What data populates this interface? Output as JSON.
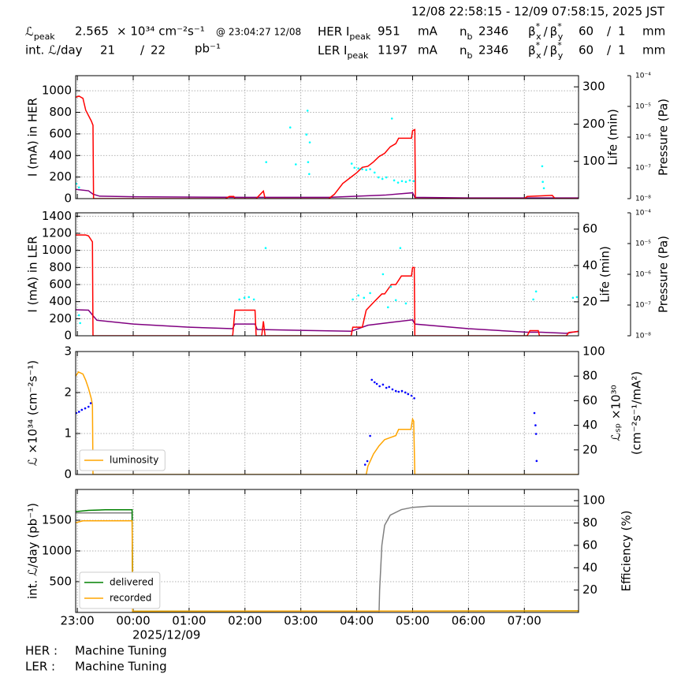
{
  "header": {
    "time_range": "12/08 22:58:15 - 12/09 07:58:15, 2025 JST",
    "peak_lum_symbol": "ℒ",
    "peak_sub": "peak",
    "peak_lum": 2.565,
    "peak_lum_unit": "× 10³⁴ cm⁻²s⁻¹",
    "peak_lum_time": "@ 23:04:27 12/08",
    "int_lum_label": "int. ℒ/day",
    "int_lum_values": [
      21,
      22
    ],
    "separator": "/",
    "int_lum_unit": "pb⁻¹",
    "current_unit": "mA",
    "nb_symbol": "n",
    "nb_sub": "b",
    "beta_symbol": "β",
    "beta_star": "*",
    "beta_x": "x",
    "beta_y": "y",
    "beta_unit": "mm",
    "rings": [
      {
        "label": "HER I",
        "current": 951,
        "bunches": 2346,
        "beta_values": [
          60,
          1
        ]
      },
      {
        "label": "LER I",
        "current": 1197,
        "bunches": 2346,
        "beta_values": [
          60,
          1
        ]
      }
    ]
  },
  "status": [
    {
      "ring": "HER :",
      "state": "Machine Tuning"
    },
    {
      "ring": "LER :",
      "state": "Machine Tuning"
    }
  ],
  "chart_data": [
    {
      "type": "line",
      "ylabel": "I (mA) in HER",
      "y2label": "Life (min)",
      "y3label": "Pressure (Pa)",
      "xlim": [
        -1.03,
        7.97
      ],
      "xticks": [
        -1,
        0,
        1,
        2,
        3,
        4,
        5,
        6,
        7
      ],
      "ylim": [
        0,
        1140
      ],
      "yticks": [
        0,
        200,
        400,
        600,
        800,
        1000
      ],
      "y2lim": [
        0,
        330
      ],
      "y2ticks": [
        100,
        200,
        300
      ],
      "y3lim": [
        1e-08,
        0.0001
      ],
      "y3log": true,
      "y3ticks": [
        {
          "value": 1e-08,
          "label": "10⁻⁸"
        },
        {
          "value": 1e-07,
          "label": "10⁻⁷"
        },
        {
          "value": 1e-06,
          "label": "10⁻⁶"
        },
        {
          "value": 1e-05,
          "label": "10⁻⁵"
        },
        {
          "value": 0.0001,
          "label": "10⁻⁴"
        }
      ],
      "grid": true,
      "series": [
        {
          "color": "#800080",
          "axis": "y3",
          "mode": "line",
          "x": [
            -1.03,
            -0.8,
            -0.72,
            -0.6,
            0,
            2,
            3.5,
            4.5,
            5.0,
            5.04,
            6,
            7.97
          ],
          "values": [
            2e-08,
            1.8e-08,
            1.4e-08,
            1.2e-08,
            1.15e-08,
            1.1e-08,
            1.1e-08,
            1.3e-08,
            1.55e-08,
            1.1e-08,
            1.05e-08,
            1.05e-08
          ]
        },
        {
          "color": "#ff0000",
          "axis": "y",
          "mode": "line",
          "x": [
            -1.03,
            -0.97,
            -0.9,
            -0.85,
            -0.75,
            -0.72,
            -0.71,
            1.65,
            1.72,
            1.8,
            1.82,
            2.2,
            2.33,
            2.36,
            3.5,
            3.6,
            3.75,
            3.9,
            4.0,
            4.1,
            4.2,
            4.3,
            4.4,
            4.5,
            4.6,
            4.7,
            4.75,
            4.85,
            4.98,
            5.0,
            5.04,
            5.05,
            7.0,
            7.05,
            7.5,
            7.55,
            7.97
          ],
          "values": [
            940,
            950,
            930,
            820,
            720,
            680,
            0,
            0,
            20,
            20,
            0,
            0,
            70,
            0,
            0,
            40,
            140,
            200,
            240,
            290,
            300,
            340,
            390,
            420,
            480,
            510,
            560,
            560,
            560,
            630,
            640,
            0,
            0,
            20,
            30,
            0,
            0
          ]
        },
        {
          "color": "#00ffff",
          "axis": "y2",
          "mode": "markers",
          "x": [
            -1.02,
            -0.97,
            2.38,
            2.81,
            2.91,
            3.1,
            3.12,
            3.13,
            3.15,
            3.16,
            3.91,
            3.96,
            4.03,
            4.1,
            4.17,
            4.24,
            4.32,
            4.39,
            4.46,
            4.53,
            4.63,
            4.67,
            4.74,
            4.81,
            4.88,
            4.95,
            5.02,
            7.32,
            7.33,
            7.35
          ],
          "values": [
            40,
            30,
            98,
            191,
            92,
            172,
            236,
            98,
            66,
            151,
            94,
            83,
            81,
            79,
            77,
            79,
            70,
            57,
            53,
            57,
            215,
            49,
            43,
            47,
            45,
            49,
            47,
            87,
            45,
            28
          ]
        }
      ]
    },
    {
      "type": "line",
      "ylabel": "I (mA) in LER",
      "y2label": "Life (min)",
      "y3label": "Pressure (Pa)",
      "xlim": [
        -1.03,
        7.97
      ],
      "xticks": [
        -1,
        0,
        1,
        2,
        3,
        4,
        5,
        6,
        7
      ],
      "ylim": [
        0,
        1440
      ],
      "yticks": [
        0,
        200,
        400,
        600,
        800,
        1000,
        1200,
        1400
      ],
      "y2lim": [
        1.3,
        69
      ],
      "y2ticks": [
        20,
        40,
        60
      ],
      "y3lim": [
        1e-08,
        0.0001
      ],
      "y3log": true,
      "y3ticks": [
        {
          "value": 1e-08,
          "label": "10⁻⁸"
        },
        {
          "value": 1e-07,
          "label": "10⁻⁷"
        },
        {
          "value": 1e-06,
          "label": "10⁻⁶"
        },
        {
          "value": 1e-05,
          "label": "10⁻⁵"
        },
        {
          "value": 0.0001,
          "label": "10⁻⁴"
        }
      ],
      "grid": true,
      "series": [
        {
          "color": "#800080",
          "axis": "y3",
          "mode": "line",
          "x": [
            -1.03,
            -0.8,
            -0.72,
            -0.65,
            0,
            1,
            1.78,
            1.82,
            2.18,
            2.22,
            3.9,
            4.2,
            4.6,
            5.0,
            5.04,
            6,
            7.05,
            7.3,
            7.75,
            7.97
          ],
          "values": [
            7e-08,
            6.8e-08,
            4.5e-08,
            3.2e-08,
            2.4e-08,
            1.9e-08,
            1.7e-08,
            2.4e-08,
            2.4e-08,
            1.6e-08,
            1.4e-08,
            2.2e-08,
            2.7e-08,
            3.3e-08,
            2.4e-08,
            1.7e-08,
            1.3e-08,
            1.3e-08,
            1.2e-08,
            1.4e-08
          ]
        },
        {
          "color": "#ff0000",
          "axis": "y",
          "mode": "line",
          "x": [
            -1.03,
            -0.85,
            -0.8,
            -0.73,
            -0.72,
            1.78,
            1.82,
            2.18,
            2.2,
            2.3,
            2.33,
            2.36,
            3.9,
            3.93,
            4.1,
            4.17,
            4.3,
            4.45,
            4.5,
            4.62,
            4.7,
            4.8,
            4.98,
            5.0,
            5.03,
            5.04,
            7.05,
            7.1,
            7.25,
            7.27,
            7.75,
            7.8,
            7.97
          ],
          "values": [
            1180,
            1180,
            1170,
            1100,
            0,
            0,
            300,
            300,
            0,
            0,
            170,
            0,
            0,
            100,
            100,
            300,
            390,
            490,
            490,
            600,
            600,
            700,
            700,
            800,
            800,
            0,
            0,
            60,
            60,
            0,
            0,
            40,
            50
          ]
        },
        {
          "color": "#00ffff",
          "axis": "y2",
          "mode": "markers",
          "x": [
            -0.97,
            -0.95,
            1.9,
            1.99,
            2.07,
            2.16,
            2.37,
            3.93,
            4.03,
            4.13,
            4.24,
            4.47,
            4.56,
            4.61,
            4.7,
            4.78,
            4.88,
            7.16,
            7.21,
            7.87,
            7.94
          ],
          "values": [
            12.6,
            8.3,
            21.3,
            22.2,
            22.6,
            21.3,
            49.6,
            21.3,
            23.5,
            22.2,
            24.8,
            35.2,
            17,
            28.3,
            20.9,
            49.6,
            19.1,
            21.3,
            25.7,
            22.2,
            22.6
          ]
        }
      ]
    },
    {
      "type": "line",
      "ylabel": "ℒ ×10³⁴ (cm⁻²s⁻¹)",
      "y2label": "ℒₛₚ ×10³⁰",
      "y2label_line2": "(cm⁻²s⁻¹/mA²)",
      "xlim": [
        -1.03,
        7.97
      ],
      "xticks": [
        -1,
        0,
        1,
        2,
        3,
        4,
        5,
        6,
        7
      ],
      "ylim": [
        0,
        3
      ],
      "yticks": [
        0,
        1,
        2,
        3
      ],
      "y2lim": [
        0,
        100
      ],
      "y2ticks": [
        20,
        40,
        60,
        80,
        100
      ],
      "grid": true,
      "legend": "lower left",
      "series": [
        {
          "name": "luminosity",
          "color": "#ffa500",
          "axis": "y",
          "mode": "line",
          "x": [
            -1.03,
            -0.98,
            -0.9,
            -0.85,
            -0.8,
            -0.75,
            -0.73,
            -0.72,
            4.17,
            4.2,
            4.3,
            4.4,
            4.5,
            4.6,
            4.7,
            4.75,
            4.97,
            5.0,
            5.02,
            5.04,
            7.97
          ],
          "values": [
            2.4,
            2.5,
            2.45,
            2.3,
            2.1,
            1.85,
            1.7,
            0,
            0,
            0.2,
            0.5,
            0.7,
            0.85,
            0.9,
            0.95,
            1.1,
            1.1,
            1.35,
            1.3,
            0,
            0
          ]
        },
        {
          "color": "#0000ff",
          "axis": "y2",
          "mode": "markers",
          "x": [
            -1.02,
            -0.97,
            -0.92,
            -0.86,
            -0.8,
            -0.76,
            4.15,
            4.19,
            4.24,
            4.27,
            4.32,
            4.36,
            4.41,
            4.47,
            4.53,
            4.58,
            4.64,
            4.7,
            4.75,
            4.81,
            4.87,
            4.92,
            4.98,
            5.03,
            7.18,
            7.2,
            7.21,
            7.22
          ],
          "values": [
            50,
            51,
            52.6,
            53.8,
            55.1,
            58,
            8,
            10.9,
            31.4,
            77,
            75,
            73.7,
            71.8,
            73.1,
            70.5,
            71.2,
            69.2,
            67.9,
            67.3,
            67.9,
            66.7,
            65.4,
            64.1,
            62,
            50,
            40,
            33,
            11
          ]
        }
      ]
    },
    {
      "type": "line",
      "ylabel": "int. ℒ/day (pb⁻¹)",
      "y2label": "Efficiency (%)",
      "xlabel": "2025/12/09",
      "xlim": [
        -1.03,
        7.97
      ],
      "xticks": [
        {
          "value": -1,
          "label": "23:00"
        },
        {
          "value": 0,
          "label": "00:00"
        },
        {
          "value": 1,
          "label": "01:00"
        },
        {
          "value": 2,
          "label": "02:00"
        },
        {
          "value": 3,
          "label": "03:00"
        },
        {
          "value": 4,
          "label": "04:00"
        },
        {
          "value": 5,
          "label": "05:00"
        },
        {
          "value": 6,
          "label": "06:00"
        },
        {
          "value": 7,
          "label": "07:00"
        }
      ],
      "ylim": [
        0,
        2000
      ],
      "yticks": [
        500,
        1000,
        1500
      ],
      "y2lim": [
        0,
        110
      ],
      "y2ticks": [
        20,
        40,
        60,
        80,
        100
      ],
      "grid": true,
      "legend": "lower left",
      "series": [
        {
          "color": "#808080",
          "axis": "y2",
          "mode": "line",
          "x": [
            -1.03,
            -0.02,
            -0.01,
            4.4,
            4.41,
            4.45,
            4.5,
            4.6,
            4.8,
            5.0,
            5.3,
            7.97
          ],
          "values": [
            89,
            89,
            0,
            0,
            20,
            60,
            78,
            87,
            92,
            94,
            95,
            95
          ]
        },
        {
          "name": "delivered",
          "color": "#008000",
          "axis": "y",
          "mode": "line",
          "x": [
            -1.03,
            -0.8,
            -0.5,
            -0.02,
            -0.01,
            7.97
          ],
          "values": [
            1640,
            1660,
            1670,
            1670,
            20,
            25
          ]
        },
        {
          "name": "recorded",
          "color": "#ffa500",
          "axis": "y",
          "mode": "line",
          "x": [
            -1.03,
            -0.9,
            -0.02,
            -0.01,
            7.97
          ],
          "values": [
            1460,
            1490,
            1490,
            20,
            25
          ]
        }
      ]
    }
  ]
}
